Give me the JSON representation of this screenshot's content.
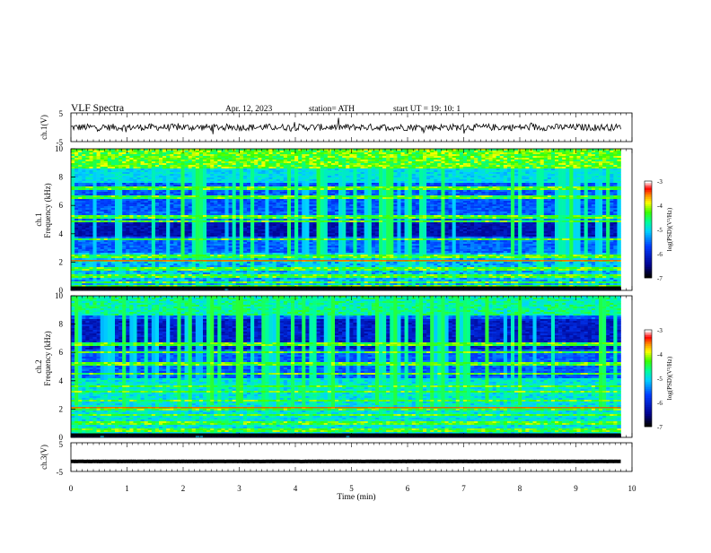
{
  "header": {
    "title": "VLF  Spectra",
    "date": "Apr. 12, 2023",
    "station": "station= ATH",
    "start": "start  UT  =    19: 10: 1"
  },
  "chart_data": [
    {
      "name": "ch1-voltage",
      "type": "line",
      "ylabel": "ch.1(V)",
      "yticks": [
        "5",
        "-5"
      ],
      "ylim": [
        -5,
        5
      ],
      "xlim": [
        0,
        10
      ],
      "mean": 0.0,
      "noise_amplitude": 1.2
    },
    {
      "name": "ch1-spectrogram",
      "type": "heatmap",
      "ylabel": "ch.1\nFrequency  (kHz)",
      "ylabel_lines": [
        "ch.1",
        "Frequency  (kHz)"
      ],
      "yticks": [
        "0",
        "2",
        "4",
        "6",
        "8",
        "10"
      ],
      "ylim": [
        0,
        10
      ],
      "xlim": [
        0,
        9.8
      ],
      "colorbar": {
        "label": "log(PSD)(V²/Hz)",
        "ticks": [
          "-3",
          "-4",
          "-5",
          "-6",
          "-7"
        ],
        "range": [
          -7,
          -3
        ]
      },
      "bands_khz": [
        0.3,
        0.6,
        1.0,
        1.5,
        2.1,
        2.4,
        3.6,
        4.9,
        5.2,
        6.6,
        7.2
      ],
      "dark_band_khz": [
        3.8,
        4.9
      ]
    },
    {
      "name": "ch2-spectrogram",
      "type": "heatmap",
      "ylabel": "ch.2\nFrequency  (kHz)",
      "ylabel_lines": [
        "ch.2",
        "Frequency  (kHz)"
      ],
      "yticks": [
        "0",
        "2",
        "4",
        "6",
        "8",
        "10"
      ],
      "ylim": [
        0,
        10
      ],
      "xlim": [
        0,
        9.8
      ],
      "colorbar": {
        "label": "log(PSD)(V²/Hz)",
        "ticks": [
          "-3",
          "-4",
          "-5",
          "-6",
          "-7"
        ],
        "range": [
          -7,
          -3
        ]
      },
      "bands_khz": [
        0.5,
        1.0,
        1.6,
        2.0,
        2.6,
        3.2,
        3.6,
        4.5,
        5.2,
        6.0,
        6.6
      ],
      "dark_band_khz": [
        6.2,
        8.4
      ]
    },
    {
      "name": "ch3-voltage",
      "type": "line",
      "ylabel": "ch.3(V)",
      "yticks": [
        "5",
        "-5"
      ],
      "ylim": [
        -5,
        5
      ],
      "xlim": [
        0,
        10
      ],
      "mean": -1.5,
      "noise_amplitude": 0.05
    }
  ],
  "xaxis": {
    "label": "Time  (min)",
    "ticks": [
      "0",
      "1",
      "2",
      "3",
      "4",
      "5",
      "6",
      "7",
      "8",
      "9",
      "10"
    ],
    "range": [
      0,
      10
    ]
  }
}
